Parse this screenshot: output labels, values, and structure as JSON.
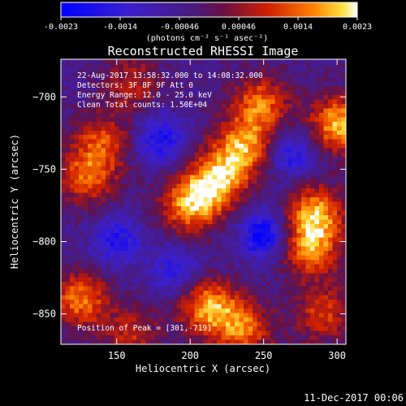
{
  "colorbar": {
    "ticks": [
      "-0.0023",
      "-0.0014",
      "-0.00046",
      "0.00046",
      "0.0014",
      "0.0023"
    ],
    "unit_label": "(photons cm⁻² s⁻¹ asec⁻²)"
  },
  "chart_data": {
    "type": "heatmap",
    "title": "Reconstructed RHESSI Image",
    "xlabel": "Heliocentric X (arcsec)",
    "ylabel": "Heliocentric Y (arcsec)",
    "xlim": [
      112,
      306
    ],
    "ylim": [
      -871,
      -674
    ],
    "x_ticks": [
      "150",
      "200",
      "250",
      "300"
    ],
    "y_ticks": [
      "-700",
      "-750",
      "-800",
      "-850"
    ],
    "value_range": [
      -0.0023,
      0.0023
    ],
    "colormap": "blue-purple-red-orange-yellow-white",
    "annotations": [
      "22-Aug-2017 13:58:32.000 to 14:08:32.000",
      "Detectors: 3F 8F 9F Att 0",
      "Energy Range: 12.0 - 25.0 keV",
      "Clean    Total counts: 1.50E+04"
    ],
    "peak_label": "Position of Peak = [301,-719]",
    "blobs": [
      {
        "x": 218,
        "y": -758,
        "value": 0.0022
      },
      {
        "x": 236,
        "y": -735,
        "value": 0.0021
      },
      {
        "x": 248,
        "y": -705,
        "value": 0.0018
      },
      {
        "x": 200,
        "y": -775,
        "value": 0.0021
      },
      {
        "x": 301,
        "y": -719,
        "value": 0.0023
      },
      {
        "x": 285,
        "y": -780,
        "value": 0.0021
      },
      {
        "x": 282,
        "y": -805,
        "value": 0.0019
      },
      {
        "x": 130,
        "y": -755,
        "value": 0.0017
      },
      {
        "x": 140,
        "y": -730,
        "value": 0.0014
      },
      {
        "x": 125,
        "y": -840,
        "value": 0.0019
      },
      {
        "x": 160,
        "y": -865,
        "value": 0.0012
      },
      {
        "x": 212,
        "y": -845,
        "value": 0.0021
      },
      {
        "x": 236,
        "y": -860,
        "value": 0.0018
      },
      {
        "x": 290,
        "y": -850,
        "value": 0.0014
      },
      {
        "x": 160,
        "y": -690,
        "value": 0.0011
      },
      {
        "x": 180,
        "y": -730,
        "value": -0.0015
      },
      {
        "x": 250,
        "y": -795,
        "value": -0.0018
      },
      {
        "x": 150,
        "y": -800,
        "value": -0.0014
      },
      {
        "x": 270,
        "y": -740,
        "value": -0.0013
      },
      {
        "x": 190,
        "y": -820,
        "value": -0.0012
      }
    ]
  },
  "footer": {
    "timestamp": "11-Dec-2017 00:06"
  }
}
